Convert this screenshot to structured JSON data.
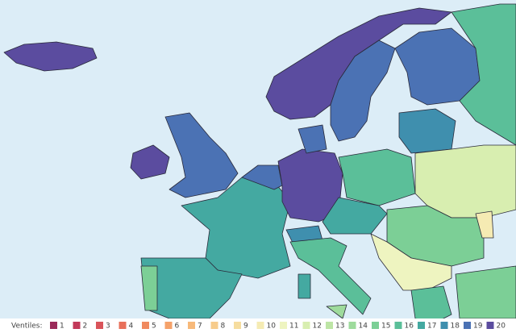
{
  "legend": {
    "title": "Ventiles:",
    "items": [
      {
        "label": "1",
        "color": "#9b2a5a"
      },
      {
        "label": "2",
        "color": "#c2395a"
      },
      {
        "label": "3",
        "color": "#d9545a"
      },
      {
        "label": "4",
        "color": "#e8705a"
      },
      {
        "label": "5",
        "color": "#f08a5f"
      },
      {
        "label": "6",
        "color": "#f5a26a"
      },
      {
        "label": "7",
        "color": "#f7b97a"
      },
      {
        "label": "8",
        "color": "#f7cc8c"
      },
      {
        "label": "9",
        "color": "#f6dd9f"
      },
      {
        "label": "10",
        "color": "#f5ebb3"
      },
      {
        "label": "11",
        "color": "#eef4c0"
      },
      {
        "label": "12",
        "color": "#d8eeb0"
      },
      {
        "label": "13",
        "color": "#bde5a5"
      },
      {
        "label": "14",
        "color": "#9edb9c"
      },
      {
        "label": "15",
        "color": "#7ccf96"
      },
      {
        "label": "16",
        "color": "#5bbf99"
      },
      {
        "label": "17",
        "color": "#44a9a1"
      },
      {
        "label": "18",
        "color": "#3f8fae"
      },
      {
        "label": "19",
        "color": "#4b72b4"
      },
      {
        "label": "20",
        "color": "#5b4c9f"
      }
    ]
  },
  "region_ventiles": [
    20,
    20,
    19,
    19,
    16,
    20,
    19,
    17,
    17,
    15,
    19,
    20,
    19,
    16,
    18,
    12,
    17,
    18,
    16,
    15,
    11,
    16,
    15,
    17,
    14,
    10
  ]
}
